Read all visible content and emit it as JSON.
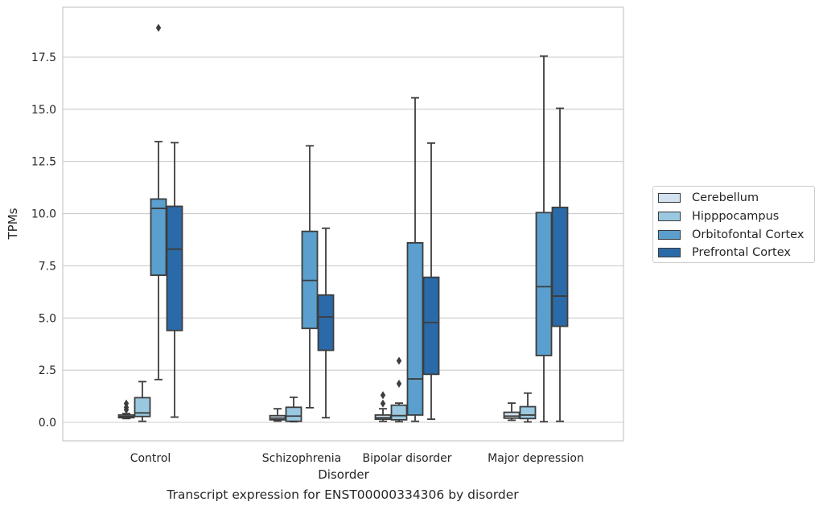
{
  "caption": "Transcript expression for ENST00000334306 by disorder",
  "chart_data": {
    "type": "box",
    "xlabel": "Disorder",
    "ylabel": "TPMs",
    "ylim": [
      -0.9,
      19.8
    ],
    "yticks": [
      0.0,
      2.5,
      5.0,
      7.5,
      10.0,
      12.5,
      15.0,
      17.5
    ],
    "ytick_labels": [
      "0.0",
      "2.5",
      "5.0",
      "7.5",
      "10.0",
      "12.5",
      "15.0",
      "17.5"
    ],
    "grid": "horizontal",
    "legend_position": "right",
    "categories": [
      "Control",
      "Schizophrenia",
      "Bipolar disorder",
      "Major depression"
    ],
    "series": [
      {
        "name": "Cerebellum",
        "color": "#d2e2f1",
        "boxes": [
          {
            "whislo": 0.18,
            "q1": 0.22,
            "med": 0.28,
            "q3": 0.35,
            "whishi": 0.42,
            "fliers": [
              0.6,
              0.72,
              0.9
            ]
          },
          {
            "whislo": 0.06,
            "q1": 0.12,
            "med": 0.2,
            "q3": 0.32,
            "whishi": 0.65,
            "fliers": []
          },
          {
            "whislo": 0.05,
            "q1": 0.15,
            "med": 0.22,
            "q3": 0.35,
            "whishi": 0.65,
            "fliers": [
              0.9,
              1.3
            ]
          },
          {
            "whislo": 0.1,
            "q1": 0.2,
            "med": 0.3,
            "q3": 0.48,
            "whishi": 0.92,
            "fliers": []
          }
        ]
      },
      {
        "name": "Hipppocampus",
        "color": "#9ac8e0",
        "boxes": [
          {
            "whislo": 0.05,
            "q1": 0.28,
            "med": 0.45,
            "q3": 1.18,
            "whishi": 1.95,
            "fliers": []
          },
          {
            "whislo": 0.03,
            "q1": 0.05,
            "med": 0.3,
            "q3": 0.72,
            "whishi": 1.2,
            "fliers": []
          },
          {
            "whislo": 0.03,
            "q1": 0.12,
            "med": 0.32,
            "q3": 0.82,
            "whishi": 0.92,
            "fliers": [
              1.85,
              2.95
            ]
          },
          {
            "whislo": 0.02,
            "q1": 0.18,
            "med": 0.35,
            "q3": 0.75,
            "whishi": 1.4,
            "fliers": []
          }
        ]
      },
      {
        "name": "Orbitofontal Cortex",
        "color": "#5a9fcd",
        "boxes": [
          {
            "whislo": 2.05,
            "q1": 7.05,
            "med": 10.25,
            "q3": 10.7,
            "whishi": 13.45,
            "fliers": [
              18.9
            ]
          },
          {
            "whislo": 0.7,
            "q1": 4.5,
            "med": 6.8,
            "q3": 9.15,
            "whishi": 13.25,
            "fliers": []
          },
          {
            "whislo": 0.05,
            "q1": 0.35,
            "med": 2.08,
            "q3": 8.6,
            "whishi": 15.55,
            "fliers": []
          },
          {
            "whislo": 0.03,
            "q1": 3.2,
            "med": 6.5,
            "q3": 10.05,
            "whishi": 17.55,
            "fliers": []
          }
        ]
      },
      {
        "name": "Prefrontal Cortex",
        "color": "#2b6aa8",
        "boxes": [
          {
            "whislo": 0.25,
            "q1": 4.4,
            "med": 8.3,
            "q3": 10.35,
            "whishi": 13.4,
            "fliers": []
          },
          {
            "whislo": 0.22,
            "q1": 3.45,
            "med": 5.05,
            "q3": 6.1,
            "whishi": 9.3,
            "fliers": []
          },
          {
            "whislo": 0.15,
            "q1": 2.3,
            "med": 4.78,
            "q3": 6.95,
            "whishi": 13.38,
            "fliers": []
          },
          {
            "whislo": 0.05,
            "q1": 4.6,
            "med": 6.05,
            "q3": 10.3,
            "whishi": 15.05,
            "fliers": []
          }
        ]
      }
    ]
  }
}
